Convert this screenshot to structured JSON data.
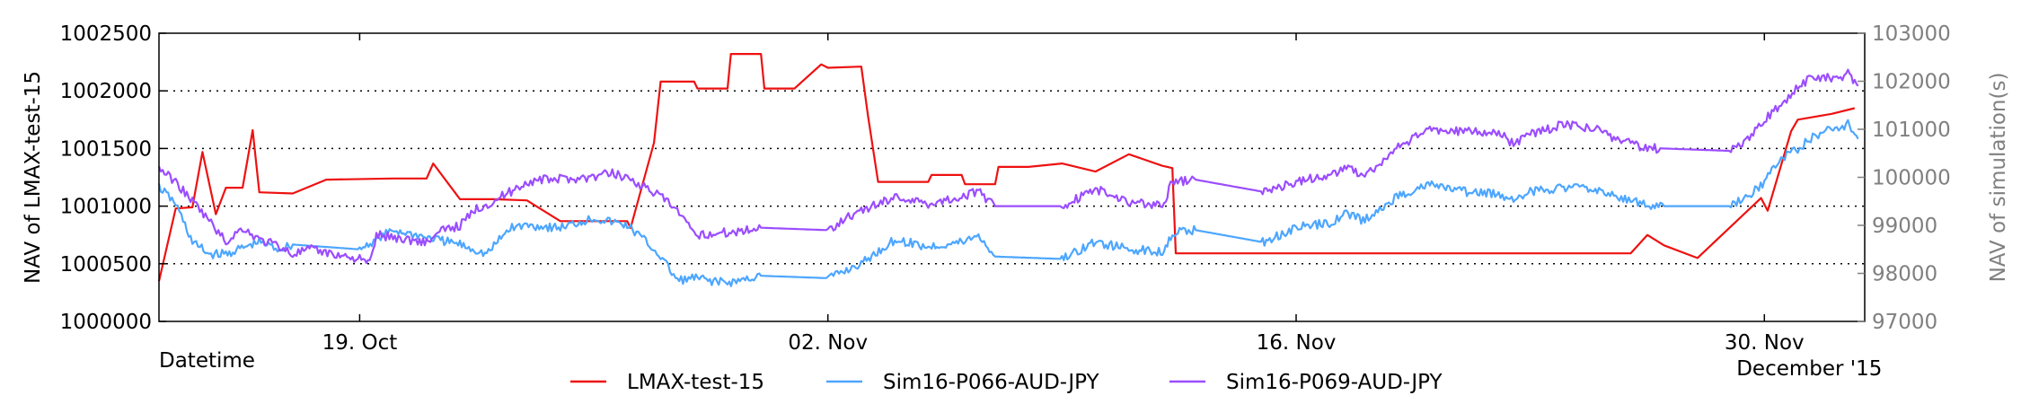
{
  "chart_data": {
    "type": "line",
    "title": "",
    "xlabel": "Datetime",
    "ylabel_left": "NAV of LMAX-test-15",
    "ylabel_right": "NAV of simulation(s)",
    "x_tick_labels": [
      "19. Oct",
      "02. Nov",
      "16. Nov",
      "30. Nov"
    ],
    "x_tick_dates": [
      "2015-10-19",
      "2015-11-02",
      "2015-11-16",
      "2015-11-30"
    ],
    "x_extra_label": "December '15",
    "xlim": [
      "2015-10-13",
      "2015-12-03"
    ],
    "ylim_left": [
      1000000,
      1002500
    ],
    "ylim_right": [
      97000,
      103000
    ],
    "y_ticks_left": [
      1000000,
      1000500,
      1001000,
      1001500,
      1002000,
      1002500
    ],
    "y_ticks_right": [
      97000,
      98000,
      99000,
      100000,
      101000,
      102000,
      103000
    ],
    "grid": "horizontal-dotted",
    "legend_position": "bottom",
    "series": [
      {
        "name": "LMAX-test-15",
        "axis": "left",
        "color": "#ee1111",
        "points": [
          [
            "2015-10-13",
            1000350
          ],
          [
            "2015-10-13.5",
            1000980
          ],
          [
            "2015-10-14",
            1000990
          ],
          [
            "2015-10-14.3",
            1001470
          ],
          [
            "2015-10-14.7",
            1000930
          ],
          [
            "2015-10-15",
            1001160
          ],
          [
            "2015-10-15.5",
            1001160
          ],
          [
            "2015-10-15.8",
            1001660
          ],
          [
            "2015-10-16",
            1001120
          ],
          [
            "2015-10-17",
            1001110
          ],
          [
            "2015-10-18",
            1001230
          ],
          [
            "2015-10-20",
            1001240
          ],
          [
            "2015-10-21",
            1001240
          ],
          [
            "2015-10-21.2",
            1001370
          ],
          [
            "2015-10-22",
            1001060
          ],
          [
            "2015-10-23",
            1001060
          ],
          [
            "2015-10-24",
            1001050
          ],
          [
            "2015-10-25",
            1000870
          ],
          [
            "2015-10-27",
            1000870
          ],
          [
            "2015-10-27.1",
            1000810
          ],
          [
            "2015-10-27.8",
            1001550
          ],
          [
            "2015-10-28",
            1002080
          ],
          [
            "2015-10-29",
            1002080
          ],
          [
            "2015-10-29.1",
            1002020
          ],
          [
            "2015-10-30",
            1002020
          ],
          [
            "2015-10-30.1",
            1002320
          ],
          [
            "2015-10-31",
            1002320
          ],
          [
            "2015-10-31.1",
            1002020
          ],
          [
            "2015-11-01",
            1002020
          ],
          [
            "2015-11-01.8",
            1002230
          ],
          [
            "2015-11-02",
            1002200
          ],
          [
            "2015-11-03",
            1002210
          ],
          [
            "2015-11-03.2",
            1001780
          ],
          [
            "2015-11-03.5",
            1001210
          ],
          [
            "2015-11-05",
            1001210
          ],
          [
            "2015-11-05.1",
            1001270
          ],
          [
            "2015-11-06",
            1001270
          ],
          [
            "2015-11-06.1",
            1001190
          ],
          [
            "2015-11-07",
            1001190
          ],
          [
            "2015-11-07.1",
            1001340
          ],
          [
            "2015-11-08",
            1001340
          ],
          [
            "2015-11-09",
            1001370
          ],
          [
            "2015-11-10",
            1001300
          ],
          [
            "2015-11-11",
            1001450
          ],
          [
            "2015-11-12",
            1001350
          ],
          [
            "2015-11-12.3",
            1001330
          ],
          [
            "2015-11-12.4",
            1000590
          ],
          [
            "2015-11-26",
            1000590
          ],
          [
            "2015-11-26.5",
            1000750
          ],
          [
            "2015-11-27",
            1000660
          ],
          [
            "2015-11-28",
            1000550
          ],
          [
            "2015-11-29.9",
            1001070
          ],
          [
            "2015-11-30.1",
            1000960
          ],
          [
            "2015-11-30.8",
            1001650
          ],
          [
            "2015-12-01",
            1001750
          ],
          [
            "2015-12-02",
            1001800
          ],
          [
            "2015-12-02.7",
            1001850
          ]
        ]
      },
      {
        "name": "Sim16-P066-AUD-JPY",
        "axis": "right",
        "color": "#4da6ff",
        "points": [
          [
            "2015-10-13",
            99800
          ],
          [
            "2015-10-13.5",
            99450
          ],
          [
            "2015-10-14",
            98650
          ],
          [
            "2015-10-14.5",
            98400
          ],
          [
            "2015-10-15",
            98400
          ],
          [
            "2015-10-16",
            98650
          ],
          [
            "2015-10-16.6",
            98500
          ],
          [
            "2015-10-17",
            98600
          ],
          [
            "2015-10-19",
            98500
          ],
          [
            "2015-10-20",
            98900
          ],
          [
            "2015-10-21",
            98750
          ],
          [
            "2015-10-22",
            98600
          ],
          [
            "2015-10-22.8",
            98400
          ],
          [
            "2015-10-23.5",
            98950
          ],
          [
            "2015-10-24",
            99000
          ],
          [
            "2015-10-25",
            98950
          ],
          [
            "2015-10-26",
            99150
          ],
          [
            "2015-10-27",
            99000
          ],
          [
            "2015-10-27.5",
            98700
          ],
          [
            "2015-10-28",
            98350
          ],
          [
            "2015-10-28.5",
            97850
          ],
          [
            "2015-10-29",
            97900
          ],
          [
            "2015-10-30",
            97800
          ],
          [
            "2015-10-31",
            97950
          ],
          [
            "2015-11-02",
            97900
          ],
          [
            "2015-11-02.5",
            98050
          ],
          [
            "2015-11-03",
            98200
          ],
          [
            "2015-11-04",
            98700
          ],
          [
            "2015-11-05",
            98550
          ],
          [
            "2015-11-06",
            98650
          ],
          [
            "2015-11-06.5",
            98800
          ],
          [
            "2015-11-07",
            98350
          ],
          [
            "2015-11-09",
            98300
          ],
          [
            "2015-11-10",
            98650
          ],
          [
            "2015-11-11",
            98500
          ],
          [
            "2015-11-12",
            98450
          ],
          [
            "2015-11-12.3",
            98850
          ],
          [
            "2015-11-13",
            98900
          ],
          [
            "2015-11-15",
            98650
          ],
          [
            "2015-11-16",
            98950
          ],
          [
            "2015-11-17",
            99050
          ],
          [
            "2015-11-17.5",
            99250
          ],
          [
            "2015-11-18",
            99100
          ],
          [
            "2015-11-18.5",
            99300
          ],
          [
            "2015-11-19",
            99600
          ],
          [
            "2015-11-20",
            99850
          ],
          [
            "2015-11-21",
            99700
          ],
          [
            "2015-11-22",
            99650
          ],
          [
            "2015-11-22.5",
            99550
          ],
          [
            "2015-11-23",
            99700
          ],
          [
            "2015-11-24",
            99800
          ],
          [
            "2015-11-25",
            99750
          ],
          [
            "2015-11-25.5",
            99600
          ],
          [
            "2015-11-26",
            99550
          ],
          [
            "2015-11-26.5",
            99400
          ],
          [
            "2015-11-27",
            99400
          ],
          [
            "2015-11-29",
            99400
          ],
          [
            "2015-11-29.5",
            99600
          ],
          [
            "2015-11-30",
            99900
          ],
          [
            "2015-11-30.5",
            100400
          ],
          [
            "2015-12-01",
            100600
          ],
          [
            "2015-12-01.5",
            100850
          ],
          [
            "2015-12-02",
            101000
          ],
          [
            "2015-12-02.5",
            101100
          ],
          [
            "2015-12-02.8",
            100800
          ]
        ]
      },
      {
        "name": "Sim16-P069-AUD-JPY",
        "axis": "right",
        "color": "#9b4dff",
        "points": [
          [
            "2015-10-13",
            100200
          ],
          [
            "2015-10-13.5",
            99900
          ],
          [
            "2015-10-14",
            99500
          ],
          [
            "2015-10-14.5",
            99100
          ],
          [
            "2015-10-15",
            98650
          ],
          [
            "2015-10-15.5",
            98950
          ],
          [
            "2015-10-16",
            98700
          ],
          [
            "2015-10-16.5",
            98600
          ],
          [
            "2015-10-17",
            98400
          ],
          [
            "2015-10-17.5",
            98500
          ],
          [
            "2015-10-19",
            98300
          ],
          [
            "2015-10-19.3",
            98200
          ],
          [
            "2015-10-19.5",
            98800
          ],
          [
            "2015-10-20",
            98750
          ],
          [
            "2015-10-21",
            98650
          ],
          [
            "2015-10-21.5",
            98900
          ],
          [
            "2015-10-22",
            99000
          ],
          [
            "2015-10-22.5",
            99350
          ],
          [
            "2015-10-23",
            99500
          ],
          [
            "2015-10-24",
            99900
          ],
          [
            "2015-10-24.5",
            99950
          ],
          [
            "2015-10-26",
            100000
          ],
          [
            "2015-10-26.5",
            100100
          ],
          [
            "2015-10-27",
            100000
          ],
          [
            "2015-10-27.5",
            99800
          ],
          [
            "2015-10-28",
            99600
          ],
          [
            "2015-10-28.5",
            99300
          ],
          [
            "2015-10-29",
            98800
          ],
          [
            "2015-10-30",
            98850
          ],
          [
            "2015-10-31",
            98950
          ],
          [
            "2015-11-02",
            98900
          ],
          [
            "2015-11-02.5",
            99150
          ],
          [
            "2015-11-03",
            99300
          ],
          [
            "2015-11-04",
            99600
          ],
          [
            "2015-11-05",
            99450
          ],
          [
            "2015-11-06",
            99600
          ],
          [
            "2015-11-06.5",
            99700
          ],
          [
            "2015-11-07",
            99400
          ],
          [
            "2015-11-09",
            99400
          ],
          [
            "2015-11-10",
            99750
          ],
          [
            "2015-11-11",
            99500
          ],
          [
            "2015-11-12",
            99400
          ],
          [
            "2015-11-12.3",
            99900
          ],
          [
            "2015-11-13",
            99950
          ],
          [
            "2015-11-15",
            99700
          ],
          [
            "2015-11-16",
            99900
          ],
          [
            "2015-11-17",
            100050
          ],
          [
            "2015-11-17.5",
            100200
          ],
          [
            "2015-11-18",
            100050
          ],
          [
            "2015-11-18.5",
            100250
          ],
          [
            "2015-11-19",
            100600
          ],
          [
            "2015-11-20",
            101000
          ],
          [
            "2015-11-21",
            100950
          ],
          [
            "2015-11-22",
            100950
          ],
          [
            "2015-11-22.5",
            100700
          ],
          [
            "2015-11-23",
            100900
          ],
          [
            "2015-11-24",
            101100
          ],
          [
            "2015-11-25",
            101000
          ],
          [
            "2015-11-25.5",
            100800
          ],
          [
            "2015-11-26",
            100700
          ],
          [
            "2015-11-26.5",
            100600
          ],
          [
            "2015-11-27",
            100600
          ],
          [
            "2015-11-29",
            100550
          ],
          [
            "2015-11-29.5",
            100800
          ],
          [
            "2015-11-30",
            101200
          ],
          [
            "2015-11-30.5",
            101500
          ],
          [
            "2015-12-01",
            101900
          ],
          [
            "2015-12-01.5",
            102100
          ],
          [
            "2015-12-02",
            102050
          ],
          [
            "2015-12-02.5",
            102150
          ],
          [
            "2015-12-02.8",
            101900
          ]
        ]
      }
    ]
  }
}
